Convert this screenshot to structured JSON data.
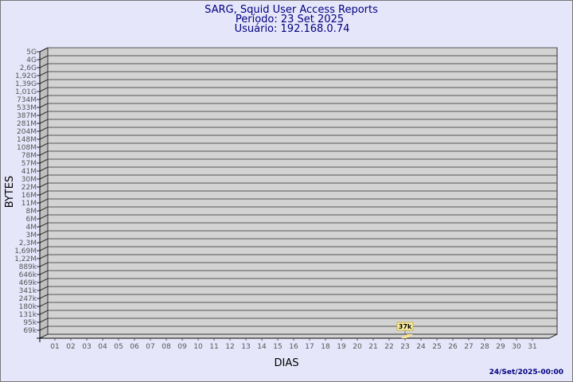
{
  "chart_data": {
    "type": "bar",
    "title": "SARG, Squid User Access Reports",
    "subtitle_period": "Período: 23 Set 2025",
    "subtitle_user": "Usuário: 192.168.0.74",
    "xlabel": "DIAS",
    "ylabel": "BYTES",
    "footer": "24/Set/2025-00:00",
    "y_scale": "log",
    "grid": true,
    "y_tick_labels": [
      "5G",
      "4G",
      "2,6G",
      "1,92G",
      "1,39G",
      "1,01G",
      "734M",
      "533M",
      "387M",
      "281M",
      "204M",
      "148M",
      "108M",
      "78M",
      "57M",
      "41M",
      "30M",
      "22M",
      "16M",
      "11M",
      "8M",
      "6M",
      "4M",
      "3M",
      "2,3M",
      "1,69M",
      "1,22M",
      "889k",
      "646k",
      "469k",
      "341k",
      "247k",
      "180k",
      "131k",
      "95k",
      "69k"
    ],
    "categories": [
      "01",
      "02",
      "03",
      "04",
      "05",
      "06",
      "07",
      "08",
      "09",
      "10",
      "11",
      "12",
      "13",
      "14",
      "15",
      "16",
      "17",
      "18",
      "19",
      "20",
      "21",
      "22",
      "23",
      "24",
      "25",
      "26",
      "27",
      "28",
      "29",
      "30",
      "31"
    ],
    "values": [
      {
        "day": "23",
        "bytes": 37000,
        "label": "37k"
      }
    ],
    "colors": {
      "background": "#e6e6fa",
      "wall": "#d3d3d3",
      "side": "#c0c0c0",
      "bar": "#ffe58a",
      "label_bg": "#fff2a8",
      "title": "#000080"
    }
  }
}
